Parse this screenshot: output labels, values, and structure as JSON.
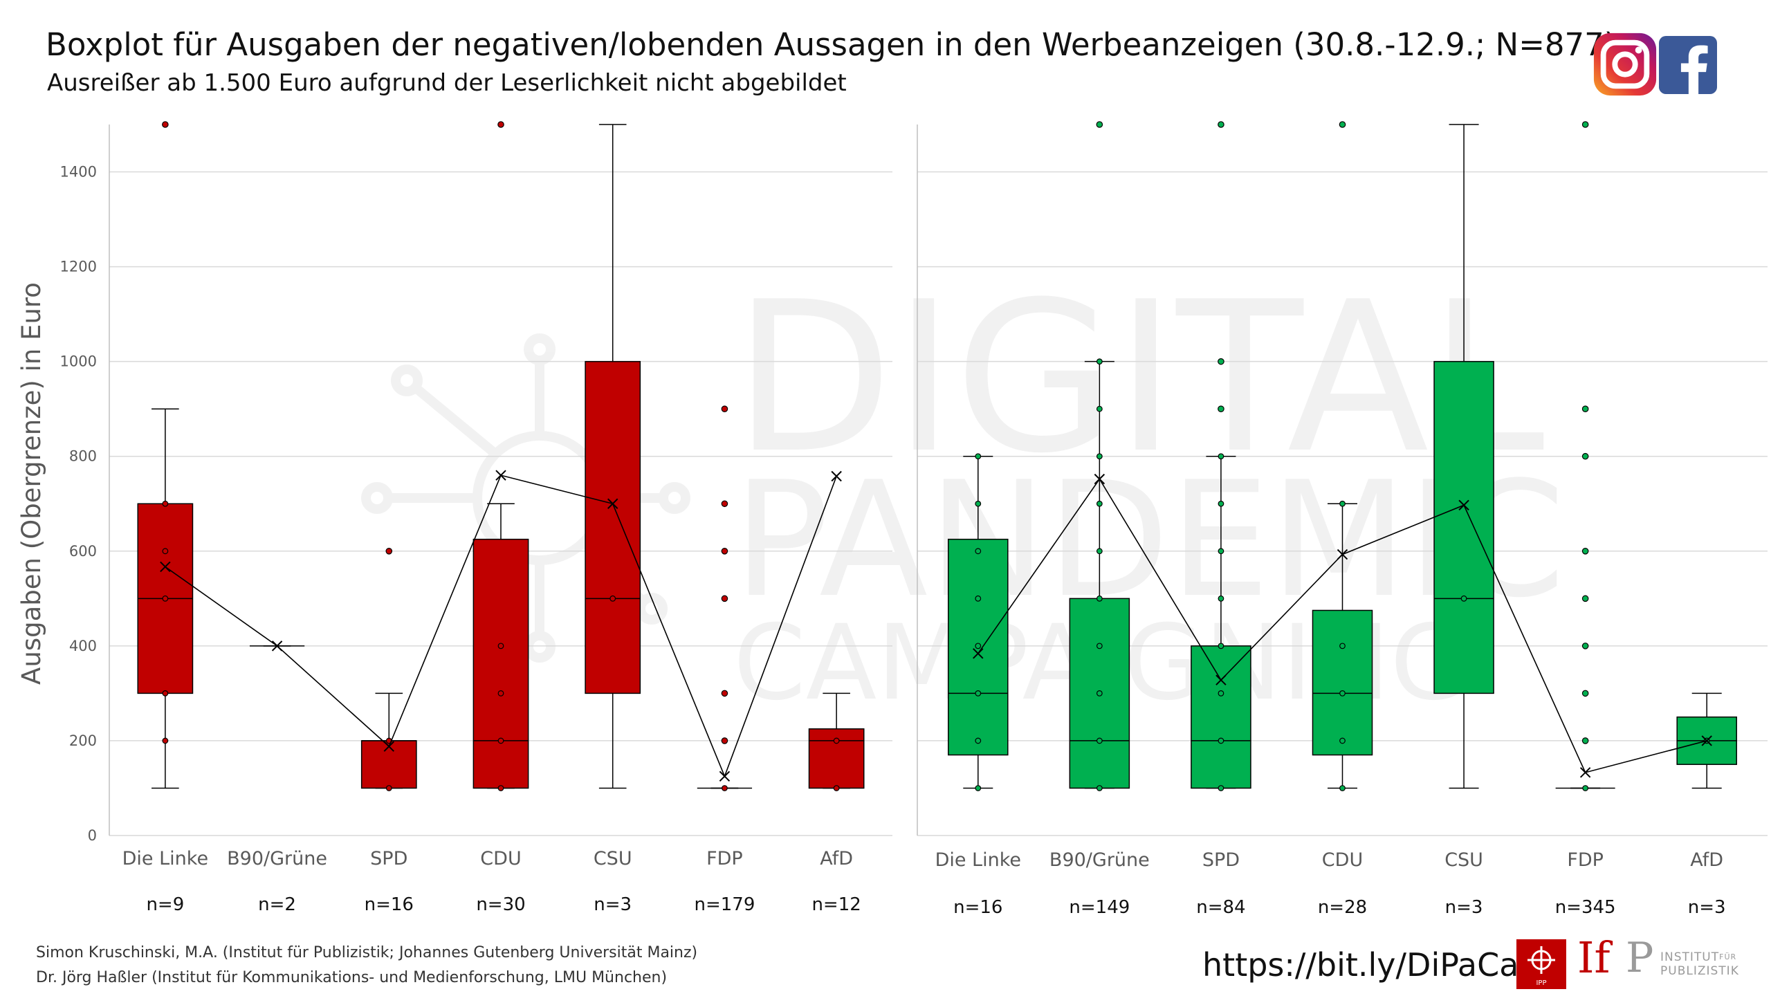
{
  "header": {
    "title": "Boxplot für Ausgaben der negativen/lobenden Aussagen in den Werbeanzeigen (30.8.-12.9.; N=877)",
    "subtitle": "Ausreißer ab 1.500 Euro aufgrund der Leserlichkeit nicht abgebildet"
  },
  "watermark": {
    "line1": "DIGITAL",
    "line2": "PANDEMIC",
    "line3": "CAMPAIGNING"
  },
  "footer": {
    "credit1": "Simon Kruschinski, M.A. (Institut für Publizistik; Johannes Gutenberg Universität Mainz)",
    "credit2": "Dr. Jörg Haßler (Institut für Kommunikations- und Medienforschung, LMU München)",
    "url": "https://bit.ly/DiPaCa",
    "logo_ipp": "IPP",
    "logo_if": "If",
    "logo_p": "P",
    "logo_institut_line1": "INSTITUT",
    "logo_institut_fuer": "FÜR",
    "logo_institut_line2": "PUBLIZISTIK"
  },
  "icons": [
    "instagram-icon",
    "facebook-icon"
  ],
  "chart_data": [
    {
      "type": "box",
      "name": "negative",
      "color": "#c00000",
      "ylabel": "Ausgaben (Obergrenze) in Euro",
      "ylim": [
        0,
        1500
      ],
      "yticks": [
        0,
        200,
        400,
        600,
        800,
        1000,
        1200,
        1400
      ],
      "grid": true,
      "categories": [
        "Die Linke",
        "B90/Grüne",
        "SPD",
        "CDU",
        "CSU",
        "FDP",
        "AfD"
      ],
      "n_labels": [
        "n=9",
        "n=2",
        "n=16",
        "n=30",
        "n=3",
        "n=179",
        "n=12"
      ],
      "boxes": [
        {
          "whisker_low": 100,
          "q1": 300,
          "median": 500,
          "q3": 700,
          "whisker_high": 900,
          "mean": 567,
          "points": [
            200,
            300,
            500,
            600,
            700
          ],
          "outliers": [
            1500
          ]
        },
        {
          "whisker_low": 400,
          "q1": 400,
          "median": 400,
          "q3": 400,
          "whisker_high": 400,
          "mean": 400,
          "points": [],
          "outliers": []
        },
        {
          "whisker_low": 100,
          "q1": 100,
          "median": 200,
          "q3": 200,
          "whisker_high": 300,
          "mean": 188,
          "points": [
            100,
            200
          ],
          "outliers": [
            600
          ]
        },
        {
          "whisker_low": 100,
          "q1": 100,
          "median": 200,
          "q3": 625,
          "whisker_high": 700,
          "mean": 760,
          "points": [
            100,
            200,
            300,
            400
          ],
          "outliers": [
            1500
          ]
        },
        {
          "whisker_low": 100,
          "q1": 300,
          "median": 500,
          "q3": 1000,
          "whisker_high": 1500,
          "mean": 700,
          "points": [
            500
          ],
          "outliers": []
        },
        {
          "whisker_low": 100,
          "q1": 100,
          "median": 100,
          "q3": 100,
          "whisker_high": 100,
          "mean": 125,
          "points": [
            100
          ],
          "outliers": [
            200,
            300,
            500,
            600,
            700,
            900
          ]
        },
        {
          "whisker_low": 100,
          "q1": 100,
          "median": 200,
          "q3": 225,
          "whisker_high": 300,
          "mean": 758,
          "points": [
            100,
            200
          ],
          "outliers": []
        }
      ]
    },
    {
      "type": "box",
      "name": "lobend",
      "color": "#00b050",
      "ylim": [
        0,
        1500
      ],
      "yticks": [
        0,
        200,
        400,
        600,
        800,
        1000,
        1200,
        1400
      ],
      "grid": true,
      "categories": [
        "Die Linke",
        "B90/Grüne",
        "SPD",
        "CDU",
        "CSU",
        "FDP",
        "AfD"
      ],
      "n_labels": [
        "n=16",
        "n=149",
        "n=84",
        "n=28",
        "n=3",
        "n=345",
        "n=3"
      ],
      "boxes": [
        {
          "whisker_low": 100,
          "q1": 170,
          "median": 300,
          "q3": 625,
          "whisker_high": 800,
          "mean": 384,
          "points": [
            100,
            200,
            300,
            400,
            500,
            600,
            700,
            800
          ],
          "outliers": []
        },
        {
          "whisker_low": 100,
          "q1": 100,
          "median": 200,
          "q3": 500,
          "whisker_high": 1000,
          "mean": 752,
          "points": [
            100,
            200,
            300,
            400,
            500,
            600,
            700,
            800,
            900,
            1000
          ],
          "outliers": [
            1500
          ]
        },
        {
          "whisker_low": 100,
          "q1": 100,
          "median": 200,
          "q3": 400,
          "whisker_high": 800,
          "mean": 328,
          "points": [
            100,
            200,
            300,
            400,
            500,
            600,
            700,
            800
          ],
          "outliers": [
            900,
            1000,
            1500
          ]
        },
        {
          "whisker_low": 100,
          "q1": 170,
          "median": 300,
          "q3": 475,
          "whisker_high": 700,
          "mean": 593,
          "points": [
            100,
            200,
            300,
            400,
            700
          ],
          "outliers": [
            1500
          ]
        },
        {
          "whisker_low": 100,
          "q1": 300,
          "median": 500,
          "q3": 1000,
          "whisker_high": 1500,
          "mean": 697,
          "points": [
            500
          ],
          "outliers": []
        },
        {
          "whisker_low": 100,
          "q1": 100,
          "median": 100,
          "q3": 100,
          "whisker_high": 100,
          "mean": 133,
          "points": [
            100
          ],
          "outliers": [
            200,
            300,
            400,
            500,
            600,
            800,
            900,
            1500
          ]
        },
        {
          "whisker_low": 100,
          "q1": 150,
          "median": 200,
          "q3": 250,
          "whisker_high": 300,
          "mean": 200,
          "points": [
            200
          ],
          "outliers": []
        }
      ]
    }
  ]
}
